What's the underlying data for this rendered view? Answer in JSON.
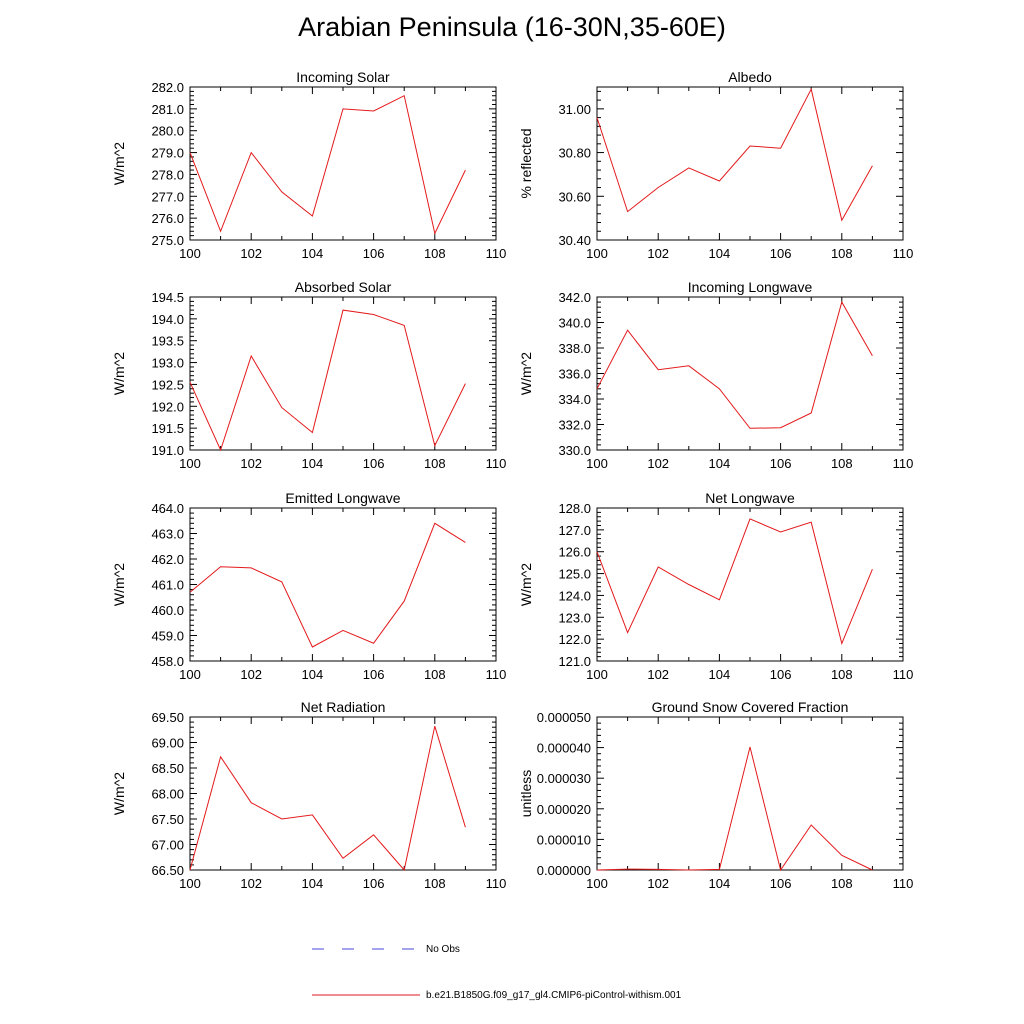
{
  "page_title": "Arabian Peninsula (16-30N,35-60E)",
  "legend": {
    "items": [
      {
        "label": "No Obs",
        "color": "#4a4ad8",
        "style": "dashed"
      },
      {
        "label": "b.e21.B1850G.f09_g17_gl4.CMIP6-piControl-withism.001",
        "color": "#e31a1c",
        "style": "solid"
      }
    ]
  },
  "chart_data": [
    {
      "type": "line",
      "title": "Incoming Solar",
      "ylabel": "W/m^2",
      "xlabel": "",
      "xlim": [
        100,
        110
      ],
      "ylim": [
        275.0,
        282.0
      ],
      "xticks": [
        "100",
        "102",
        "104",
        "106",
        "108",
        "110"
      ],
      "yticks": [
        "275.0",
        "276.0",
        "277.0",
        "278.0",
        "279.0",
        "280.0",
        "281.0",
        "282.0"
      ],
      "series": [
        {
          "color": "#e31a1c",
          "x": [
            100,
            101,
            102,
            103,
            104,
            105,
            106,
            107,
            108,
            109
          ],
          "values": [
            279.0,
            275.4,
            279.0,
            277.2,
            276.1,
            281.0,
            280.9,
            281.6,
            275.3,
            278.2
          ]
        }
      ]
    },
    {
      "type": "line",
      "title": "Albedo",
      "ylabel": "% reflected",
      "xlabel": "",
      "xlim": [
        100,
        110
      ],
      "ylim": [
        30.4,
        31.1
      ],
      "xticks": [
        "100",
        "102",
        "104",
        "106",
        "108",
        "110"
      ],
      "yticks": [
        "30.40",
        "30.60",
        "30.80",
        "31.00"
      ],
      "series": [
        {
          "color": "#e31a1c",
          "x": [
            100,
            101,
            102,
            103,
            104,
            105,
            106,
            107,
            108,
            109
          ],
          "values": [
            30.96,
            30.53,
            30.64,
            30.73,
            30.67,
            30.83,
            30.82,
            31.09,
            30.49,
            30.74
          ]
        }
      ]
    },
    {
      "type": "line",
      "title": "Absorbed Solar",
      "ylabel": "W/m^2",
      "xlabel": "",
      "xlim": [
        100,
        110
      ],
      "ylim": [
        191.0,
        194.5
      ],
      "xticks": [
        "100",
        "102",
        "104",
        "106",
        "108",
        "110"
      ],
      "yticks": [
        "191.0",
        "191.5",
        "192.0",
        "192.5",
        "193.0",
        "193.5",
        "194.0",
        "194.5"
      ],
      "series": [
        {
          "color": "#e31a1c",
          "x": [
            100,
            101,
            102,
            103,
            104,
            105,
            106,
            107,
            108,
            109
          ],
          "values": [
            192.55,
            191.0,
            193.15,
            191.97,
            191.4,
            194.2,
            194.1,
            193.85,
            191.1,
            192.52
          ]
        }
      ]
    },
    {
      "type": "line",
      "title": "Incoming Longwave",
      "ylabel": "W/m^2",
      "xlabel": "",
      "xlim": [
        100,
        110
      ],
      "ylim": [
        330.0,
        342.0
      ],
      "xticks": [
        "100",
        "102",
        "104",
        "106",
        "108",
        "110"
      ],
      "yticks": [
        "330.0",
        "332.0",
        "334.0",
        "336.0",
        "338.0",
        "340.0",
        "342.0"
      ],
      "series": [
        {
          "color": "#e31a1c",
          "x": [
            100,
            101,
            102,
            103,
            104,
            105,
            106,
            107,
            108,
            109
          ],
          "values": [
            334.8,
            339.4,
            336.3,
            336.6,
            334.8,
            331.7,
            331.75,
            332.9,
            341.6,
            337.4
          ]
        }
      ]
    },
    {
      "type": "line",
      "title": "Emitted Longwave",
      "ylabel": "W/m^2",
      "xlabel": "",
      "xlim": [
        100,
        110
      ],
      "ylim": [
        458.0,
        464.0
      ],
      "xticks": [
        "100",
        "102",
        "104",
        "106",
        "108",
        "110"
      ],
      "yticks": [
        "458.0",
        "459.0",
        "460.0",
        "461.0",
        "462.0",
        "463.0",
        "464.0"
      ],
      "series": [
        {
          "color": "#e31a1c",
          "x": [
            100,
            101,
            102,
            103,
            104,
            105,
            106,
            107,
            108,
            109
          ],
          "values": [
            460.7,
            461.7,
            461.65,
            461.1,
            458.55,
            459.2,
            458.7,
            460.35,
            463.4,
            462.65
          ]
        }
      ]
    },
    {
      "type": "line",
      "title": "Net Longwave",
      "ylabel": "W/m^2",
      "xlabel": "",
      "xlim": [
        100,
        110
      ],
      "ylim": [
        121.0,
        128.0
      ],
      "xticks": [
        "100",
        "102",
        "104",
        "106",
        "108",
        "110"
      ],
      "yticks": [
        "121.0",
        "122.0",
        "123.0",
        "124.0",
        "125.0",
        "126.0",
        "127.0",
        "128.0"
      ],
      "series": [
        {
          "color": "#e31a1c",
          "x": [
            100,
            101,
            102,
            103,
            104,
            105,
            106,
            107,
            108,
            109
          ],
          "values": [
            126.0,
            122.3,
            125.3,
            124.5,
            123.8,
            127.5,
            126.9,
            127.35,
            121.8,
            125.2
          ]
        }
      ]
    },
    {
      "type": "line",
      "title": "Net Radiation",
      "ylabel": "W/m^2",
      "xlabel": "",
      "xlim": [
        100,
        110
      ],
      "ylim": [
        66.5,
        69.5
      ],
      "xticks": [
        "100",
        "102",
        "104",
        "106",
        "108",
        "110"
      ],
      "yticks": [
        "66.50",
        "67.00",
        "67.50",
        "68.00",
        "68.50",
        "69.00",
        "69.50"
      ],
      "series": [
        {
          "color": "#e31a1c",
          "x": [
            100,
            101,
            102,
            103,
            104,
            105,
            106,
            107,
            108,
            109
          ],
          "values": [
            66.5,
            68.72,
            67.82,
            67.5,
            67.58,
            66.73,
            67.19,
            66.5,
            69.32,
            67.34
          ]
        }
      ]
    },
    {
      "type": "line",
      "title": "Ground Snow Covered Fraction",
      "ylabel": "unitless",
      "xlabel": "",
      "xlim": [
        100,
        110
      ],
      "ylim": [
        0.0,
        5e-05
      ],
      "xticks": [
        "100",
        "102",
        "104",
        "106",
        "108",
        "110"
      ],
      "yticks": [
        "0.000000",
        "0.000010",
        "0.000020",
        "0.000030",
        "0.000040",
        "0.000050"
      ],
      "series": [
        {
          "color": "#e31a1c",
          "x": [
            100,
            101,
            102,
            103,
            104,
            105,
            106,
            107,
            108,
            109
          ],
          "values": [
            0.0,
            3e-07,
            2e-07,
            0.0,
            2e-07,
            4.02e-05,
            0.0,
            1.47e-05,
            4.8e-06,
            0.0
          ]
        }
      ]
    }
  ]
}
